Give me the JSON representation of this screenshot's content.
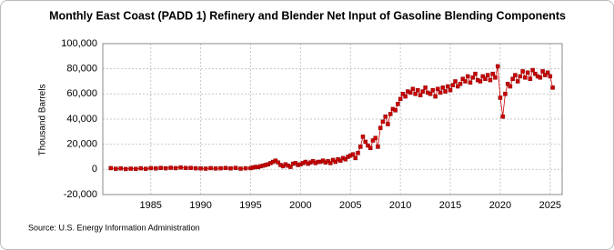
{
  "chart_data": {
    "type": "scatter",
    "title": "Monthly East Coast (PADD 1) Refinery and Blender Net Input of Gasoline Blending Components",
    "y_label": "Thousand Barrels",
    "source": "Source: U.S. Energy Information Administration",
    "xlim": [
      1980.2,
      2026.2
    ],
    "xticks": [
      1985,
      1990,
      1995,
      2000,
      2005,
      2010,
      2015,
      2020,
      2025
    ],
    "ylim": [
      -20000,
      100000
    ],
    "yticks": [
      {
        "value": -20000,
        "label": "-20,000"
      },
      0,
      {
        "value": 20000,
        "label": "20,000"
      },
      {
        "value": 40000,
        "label": "40,000"
      },
      {
        "value": 60000,
        "label": "60,000"
      },
      {
        "value": 80000,
        "label": "80,000"
      },
      {
        "value": 100000,
        "label": "100,000"
      }
    ],
    "grid": true,
    "color": "#cc0000",
    "x": [
      1981,
      1981.5,
      1982,
      1982.5,
      1983,
      1983.5,
      1984,
      1984.5,
      1985,
      1985.5,
      1986,
      1986.5,
      1987,
      1987.5,
      1988,
      1988.5,
      1989,
      1989.5,
      1990,
      1990.5,
      1991,
      1991.5,
      1992,
      1992.5,
      1993,
      1993.5,
      1994,
      1994.5,
      1995,
      1995.25,
      1995.5,
      1995.75,
      1996,
      1996.25,
      1996.5,
      1996.75,
      1997,
      1997.25,
      1997.5,
      1997.75,
      1998,
      1998.25,
      1998.5,
      1998.75,
      1999,
      1999.25,
      1999.5,
      1999.75,
      2000,
      2000.25,
      2000.5,
      2000.75,
      2001,
      2001.25,
      2001.5,
      2001.75,
      2002,
      2002.25,
      2002.5,
      2002.75,
      2003,
      2003.25,
      2003.5,
      2003.75,
      2004,
      2004.25,
      2004.5,
      2004.75,
      2005,
      2005.25,
      2005.5,
      2005.75,
      2006,
      2006.25,
      2006.5,
      2006.75,
      2007,
      2007.25,
      2007.5,
      2007.75,
      2008,
      2008.25,
      2008.5,
      2008.75,
      2009,
      2009.25,
      2009.5,
      2009.75,
      2010,
      2010.25,
      2010.5,
      2010.75,
      2011,
      2011.25,
      2011.5,
      2011.75,
      2012,
      2012.25,
      2012.5,
      2012.75,
      2013,
      2013.25,
      2013.5,
      2013.75,
      2014,
      2014.25,
      2014.5,
      2014.75,
      2015,
      2015.25,
      2015.5,
      2015.75,
      2016,
      2016.25,
      2016.5,
      2016.75,
      2017,
      2017.25,
      2017.5,
      2017.75,
      2018,
      2018.25,
      2018.5,
      2018.75,
      2019,
      2019.25,
      2019.5,
      2019.75,
      2020,
      2020.25,
      2020.5,
      2020.75,
      2021,
      2021.25,
      2021.5,
      2021.75,
      2022,
      2022.25,
      2022.5,
      2022.75,
      2023,
      2023.25,
      2023.5,
      2023.75,
      2024,
      2024.25,
      2024.5,
      2024.75,
      2025,
      2025.25
    ],
    "values": [
      1000,
      500,
      800,
      300,
      600,
      400,
      900,
      500,
      1000,
      800,
      1200,
      900,
      1300,
      1000,
      1500,
      1100,
      1200,
      900,
      800,
      600,
      1000,
      700,
      900,
      1100,
      800,
      1200,
      600,
      900,
      1000,
      1500,
      2000,
      1800,
      2500,
      3000,
      3500,
      4000,
      5000,
      6000,
      7000,
      5500,
      3500,
      2500,
      4000,
      3000,
      2000,
      4500,
      5000,
      3500,
      4000,
      5000,
      6000,
      4500,
      5500,
      6500,
      5000,
      6000,
      6000,
      7000,
      5500,
      6500,
      5000,
      7500,
      6000,
      8000,
      7000,
      9000,
      8000,
      10000,
      11000,
      12000,
      9000,
      13000,
      18000,
      26000,
      22000,
      19000,
      17000,
      23000,
      25000,
      18000,
      33000,
      38000,
      42000,
      36000,
      44000,
      48000,
      47000,
      52000,
      56000,
      60000,
      58000,
      62000,
      61000,
      64000,
      60000,
      63000,
      59000,
      62000,
      65000,
      61000,
      60000,
      63000,
      58000,
      64000,
      61000,
      65000,
      62000,
      66000,
      63000,
      67000,
      70000,
      66000,
      68000,
      72000,
      70000,
      74000,
      69000,
      73000,
      76000,
      71000,
      70000,
      74000,
      72000,
      75000,
      71000,
      76000,
      73000,
      82000,
      57000,
      42000,
      60000,
      68000,
      66000,
      72000,
      75000,
      70000,
      74000,
      78000,
      73000,
      77000,
      72000,
      79000,
      76000,
      74000,
      73000,
      78000,
      75000,
      77000,
      74000,
      65000
    ]
  }
}
